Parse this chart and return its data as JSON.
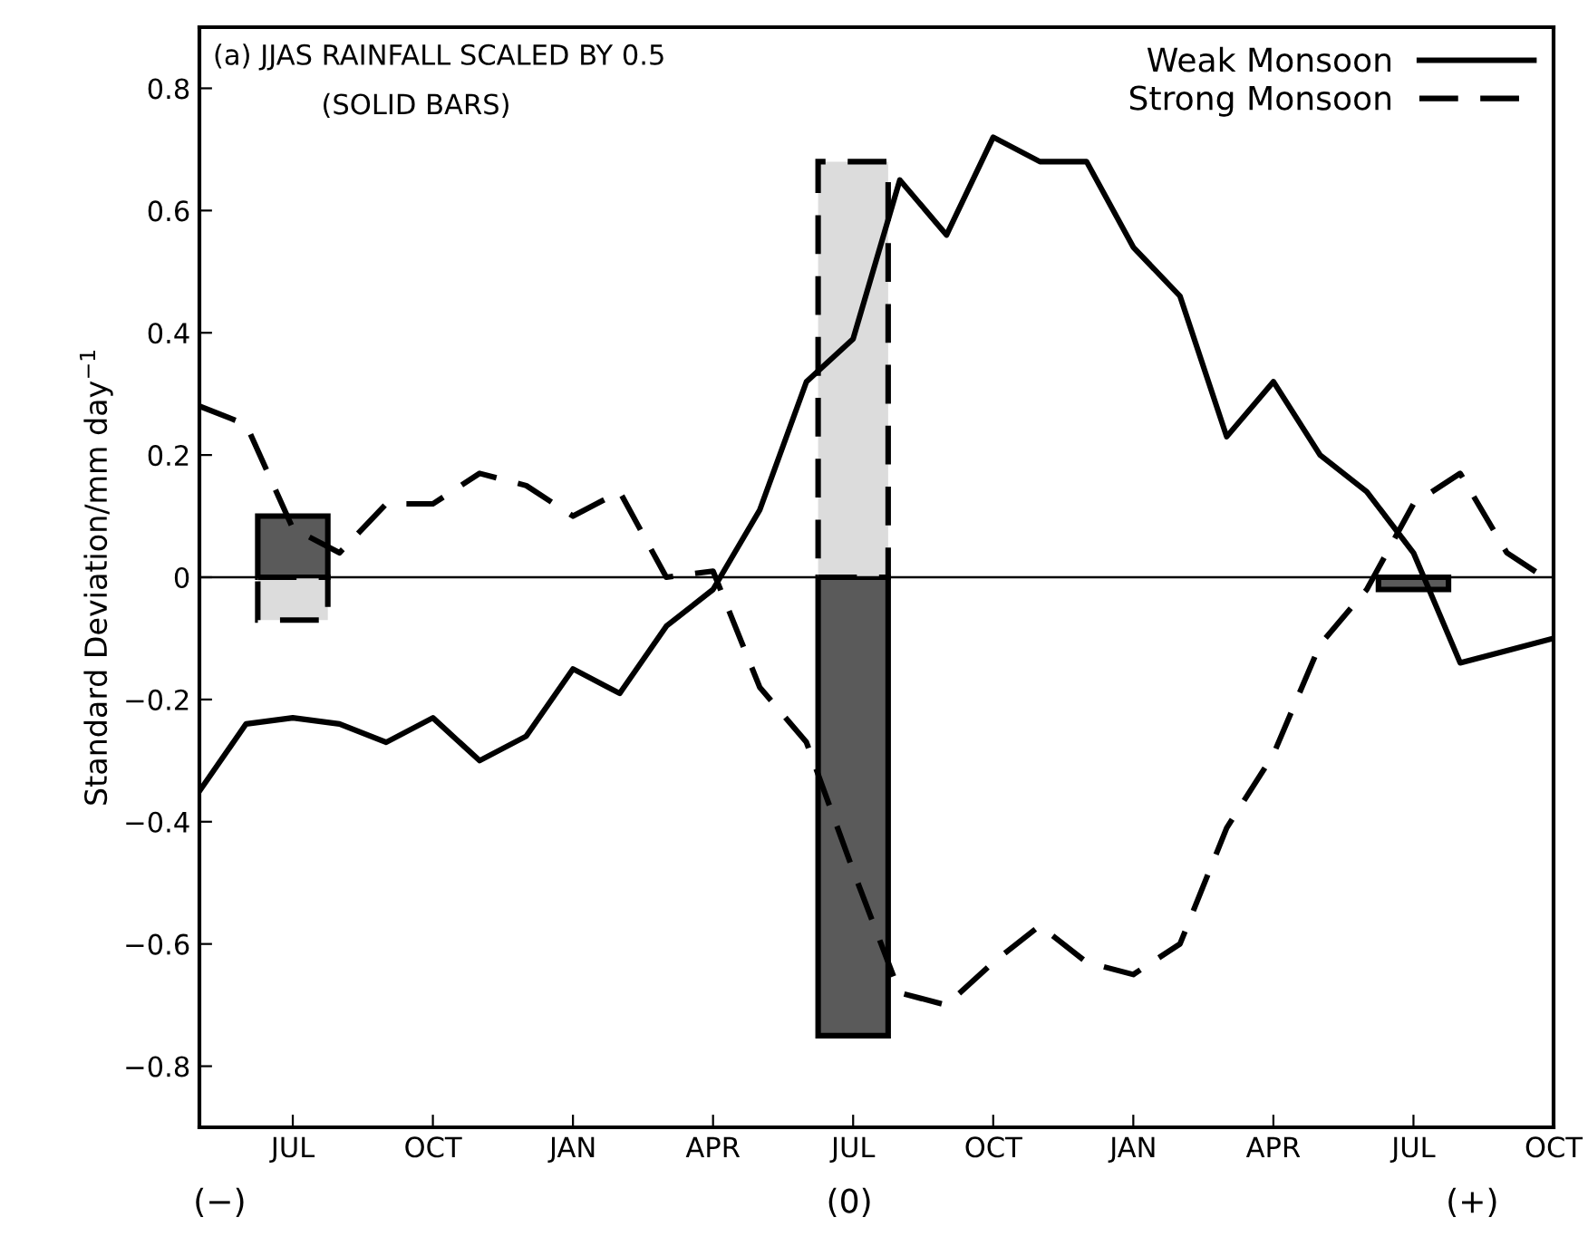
{
  "chart_data": {
    "type": "line",
    "ylabel": "Standard Deviation/mm day$^{−1}$",
    "categories": [
      null,
      null,
      "JUL",
      null,
      null,
      "OCT",
      null,
      null,
      "JAN",
      null,
      null,
      "APR",
      null,
      null,
      "JUL",
      null,
      null,
      "OCT",
      null,
      null,
      "JAN",
      null,
      null,
      "APR",
      null,
      null,
      "JUL",
      null,
      null,
      "OCT"
    ],
    "ylim": [
      -0.9,
      0.9
    ],
    "yticks": [
      {
        "value": -0.8,
        "label": "−0.8"
      },
      {
        "value": -0.6,
        "label": "−0.6"
      },
      {
        "value": -0.4,
        "label": "−0.4"
      },
      {
        "value": -0.2,
        "label": "−0.2"
      },
      0,
      0.2,
      0.4,
      0.6,
      0.8
    ],
    "grid": false,
    "legend": "top right",
    "stacked": true,
    "series": [
      {
        "type": "bar",
        "color": "#5a5a5a",
        "line_style": "solid",
        "values": [
          null,
          null,
          0.1,
          null,
          null,
          null,
          null,
          null,
          null,
          null,
          null,
          null,
          null,
          null,
          -0.75,
          null,
          null,
          null,
          null,
          null,
          null,
          null,
          null,
          null,
          null,
          null,
          -0.02,
          null,
          null,
          null
        ]
      },
      {
        "type": "bar",
        "color": "#dcdcdc",
        "line_style": "dashed",
        "values": [
          null,
          null,
          -0.07,
          null,
          null,
          null,
          null,
          null,
          null,
          null,
          null,
          null,
          null,
          null,
          0.68,
          null,
          null,
          null,
          null,
          null,
          null,
          null,
          null,
          null,
          null,
          null,
          null,
          null,
          null,
          null
        ]
      },
      {
        "name": "Weak Monsoon",
        "color": "#000000",
        "line_style": "solid",
        "values": [
          -0.35,
          -0.24,
          -0.23,
          -0.24,
          -0.27,
          -0.23,
          -0.3,
          -0.26,
          -0.15,
          -0.19,
          -0.08,
          -0.02,
          0.11,
          0.32,
          0.39,
          0.65,
          0.56,
          0.72,
          0.68,
          0.68,
          0.54,
          0.46,
          0.23,
          0.32,
          0.2,
          0.14,
          0.04,
          -0.14,
          -0.12,
          -0.1
        ]
      },
      {
        "name": "Strong Monsoon",
        "color": "#000000",
        "line_style": "dashed",
        "values": [
          0.28,
          0.25,
          0.08,
          0.04,
          0.12,
          0.12,
          0.17,
          0.15,
          0.1,
          0.14,
          0.0,
          0.01,
          -0.18,
          -0.27,
          -0.48,
          -0.68,
          -0.7,
          -0.63,
          -0.57,
          -0.63,
          -0.65,
          -0.6,
          -0.41,
          -0.29,
          -0.11,
          -0.02,
          0.12,
          0.17,
          0.04,
          -0.01
        ]
      }
    ],
    "ref_lines": [
      {
        "axis": "y",
        "value": 0,
        "color": "#000000"
      }
    ],
    "annotations": [
      "(a) JJAS RAINFALL SCALED BY 0.5",
      "(SOLID BARS)",
      "(−)",
      "(0)",
      "(+)"
    ]
  }
}
